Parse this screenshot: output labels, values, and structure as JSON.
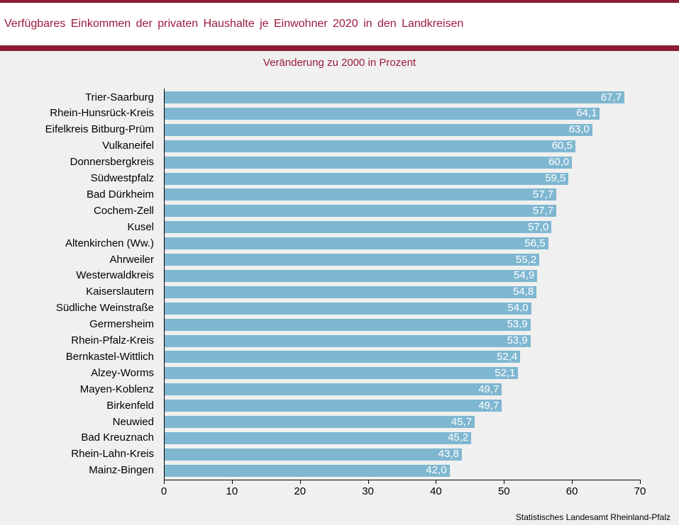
{
  "header": {
    "title": "Verfügbares Einkommen der privaten Haushalte je Einwohner 2020 in den Landkreisen"
  },
  "chart_data": {
    "type": "bar",
    "orientation": "horizontal",
    "title": "Verfügbares Einkommen der privaten Haushalte je Einwohner 2020 in den Landkreisen",
    "subtitle": "Veränderung zu 2000 in Prozent",
    "categories": [
      "Trier-Saarburg",
      "Rhein-Hunsrück-Kreis",
      "Eifelkreis Bitburg-Prüm",
      "Vulkaneifel",
      "Donnersbergkreis",
      "Südwestpfalz",
      "Bad Dürkheim",
      "Cochem-Zell",
      "Kusel",
      "Altenkirchen (Ww.)",
      "Ahrweiler",
      "Westerwaldkreis",
      "Kaiserslautern",
      "Südliche Weinstraße",
      "Germersheim",
      "Rhein-Pfalz-Kreis",
      "Bernkastel-Wittlich",
      "Alzey-Worms",
      "Mayen-Koblenz",
      "Birkenfeld",
      "Neuwied",
      "Bad Kreuznach",
      "Rhein-Lahn-Kreis",
      "Mainz-Bingen"
    ],
    "values": [
      67.7,
      64.1,
      63.0,
      60.5,
      60.0,
      59.5,
      57.7,
      57.7,
      57.0,
      56.5,
      55.2,
      54.9,
      54.8,
      54.0,
      53.9,
      53.9,
      52.4,
      52.1,
      49.7,
      49.7,
      45.7,
      45.2,
      43.8,
      42.0
    ],
    "value_labels": [
      "67,7",
      "64,1",
      "63,0",
      "60,5",
      "60,0",
      "59,5",
      "57,7",
      "57,7",
      "57,0",
      "56,5",
      "55,2",
      "54,9",
      "54,8",
      "54,0",
      "53,9",
      "53,9",
      "52,4",
      "52,1",
      "49,7",
      "49,7",
      "45,7",
      "45,2",
      "43,8",
      "42,0"
    ],
    "xlim": [
      0,
      70
    ],
    "x_ticks": [
      "0",
      "10",
      "20",
      "30",
      "40",
      "50",
      "60",
      "70"
    ],
    "xlabel": "",
    "ylabel": "",
    "grid": false,
    "bar_color": "#7fb7d1"
  },
  "footer": {
    "source": "Statistisches Landesamt Rheinland-Pfalz"
  }
}
